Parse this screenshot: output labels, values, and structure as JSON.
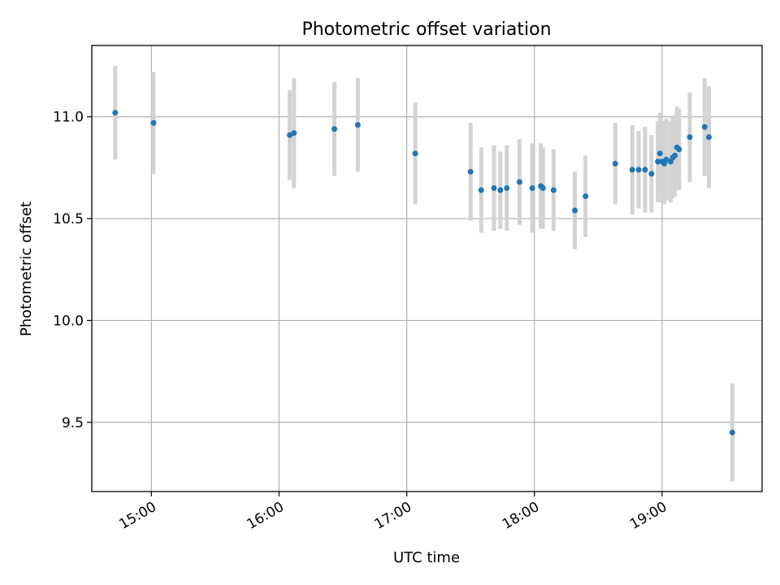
{
  "chart_data": {
    "type": "scatter",
    "title": "Photometric offset variation",
    "xlabel": "UTC time",
    "ylabel": "Photometric offset",
    "x_unit": "time of day (UTC)",
    "xlim": [
      "14:32",
      "19:47"
    ],
    "ylim": [
      9.16,
      11.35
    ],
    "x_ticks": [
      "15:00",
      "16:00",
      "17:00",
      "18:00",
      "19:00"
    ],
    "y_ticks": [
      9.5,
      10.0,
      10.5,
      11.0
    ],
    "y_tick_labels": [
      "9.5",
      "10.0",
      "10.5",
      "11.0"
    ],
    "grid": true,
    "legend": "none",
    "colors": {
      "points": "#1f77b4",
      "errorbars": "#d3d3d3",
      "grid": "#b0b0b0"
    },
    "points": [
      {
        "x": "14:43",
        "y": 11.02,
        "err": 0.23
      },
      {
        "x": "15:01",
        "y": 10.97,
        "err": 0.25
      },
      {
        "x": "16:05",
        "y": 10.91,
        "err": 0.22
      },
      {
        "x": "16:07",
        "y": 10.92,
        "err": 0.27
      },
      {
        "x": "16:26",
        "y": 10.94,
        "err": 0.23
      },
      {
        "x": "16:37",
        "y": 10.96,
        "err": 0.23
      },
      {
        "x": "17:04",
        "y": 10.82,
        "err": 0.25
      },
      {
        "x": "17:30",
        "y": 10.73,
        "err": 0.24
      },
      {
        "x": "17:35",
        "y": 10.64,
        "err": 0.21
      },
      {
        "x": "17:41",
        "y": 10.65,
        "err": 0.21
      },
      {
        "x": "17:44",
        "y": 10.64,
        "err": 0.19
      },
      {
        "x": "17:47",
        "y": 10.65,
        "err": 0.21
      },
      {
        "x": "17:53",
        "y": 10.68,
        "err": 0.21
      },
      {
        "x": "17:59",
        "y": 10.65,
        "err": 0.22
      },
      {
        "x": "18:03",
        "y": 10.66,
        "err": 0.21
      },
      {
        "x": "18:04",
        "y": 10.65,
        "err": 0.2
      },
      {
        "x": "18:09",
        "y": 10.64,
        "err": 0.2
      },
      {
        "x": "18:19",
        "y": 10.54,
        "err": 0.19
      },
      {
        "x": "18:24",
        "y": 10.61,
        "err": 0.2
      },
      {
        "x": "18:38",
        "y": 10.77,
        "err": 0.2
      },
      {
        "x": "18:46",
        "y": 10.74,
        "err": 0.22
      },
      {
        "x": "18:49",
        "y": 10.74,
        "err": 0.19
      },
      {
        "x": "18:52",
        "y": 10.74,
        "err": 0.21
      },
      {
        "x": "18:55",
        "y": 10.72,
        "err": 0.19
      },
      {
        "x": "18:58",
        "y": 10.78,
        "err": 0.2
      },
      {
        "x": "18:59",
        "y": 10.82,
        "err": 0.2
      },
      {
        "x": "19:00",
        "y": 10.78,
        "err": 0.2
      },
      {
        "x": "19:01",
        "y": 10.77,
        "err": 0.2
      },
      {
        "x": "19:02",
        "y": 10.79,
        "err": 0.2
      },
      {
        "x": "19:04",
        "y": 10.78,
        "err": 0.2
      },
      {
        "x": "19:05",
        "y": 10.8,
        "err": 0.2
      },
      {
        "x": "19:06",
        "y": 10.81,
        "err": 0.2
      },
      {
        "x": "19:07",
        "y": 10.85,
        "err": 0.2
      },
      {
        "x": "19:08",
        "y": 10.84,
        "err": 0.2
      },
      {
        "x": "19:13",
        "y": 10.9,
        "err": 0.22
      },
      {
        "x": "19:20",
        "y": 10.95,
        "err": 0.24
      },
      {
        "x": "19:22",
        "y": 10.9,
        "err": 0.25
      },
      {
        "x": "19:33",
        "y": 9.45,
        "err": 0.24
      }
    ]
  }
}
